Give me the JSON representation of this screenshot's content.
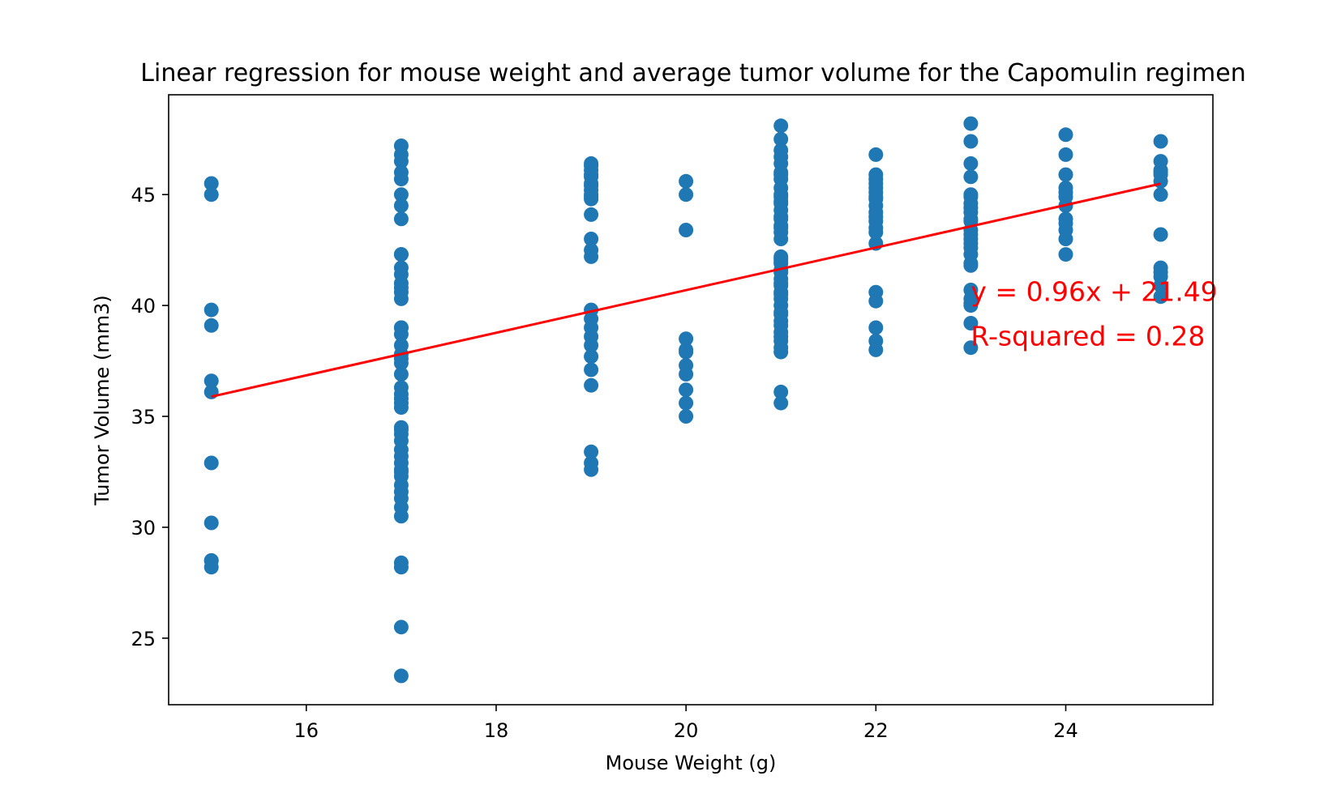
{
  "chart_data": {
    "type": "scatter",
    "title": "Linear regression for mouse weight and average tumor volume for the Capomulin regimen",
    "xlabel": "Mouse Weight (g)",
    "ylabel": "Tumor Volume (mm3)",
    "xlim": [
      14.55,
      25.55
    ],
    "ylim": [
      22.0,
      49.5
    ],
    "xticks": [
      16,
      18,
      20,
      22,
      24
    ],
    "yticks": [
      25,
      30,
      35,
      40,
      45
    ],
    "grid": false,
    "colors": {
      "points": "#1f77b4",
      "line": "#ff0000",
      "annotation": "#ff0000"
    },
    "series": [
      {
        "type": "scatter",
        "x": [
          15,
          15,
          15,
          15,
          15,
          15,
          15,
          15,
          15,
          15,
          15,
          17,
          17,
          17,
          17,
          17,
          17,
          17,
          17,
          17,
          17,
          17,
          17,
          17,
          17,
          17,
          17,
          17,
          17,
          17,
          17,
          17,
          17,
          17,
          17,
          17,
          17,
          17,
          17,
          17,
          17,
          17,
          17,
          17,
          17,
          17,
          17,
          17,
          17,
          17,
          17,
          17,
          17,
          17,
          17,
          17,
          17,
          17,
          17,
          19,
          19,
          19,
          19,
          19,
          19,
          19,
          19,
          19,
          19,
          19,
          19,
          19,
          19,
          19,
          19,
          19,
          19,
          19,
          19,
          19,
          19,
          19,
          19,
          19,
          19,
          20,
          20,
          20,
          20,
          20,
          20,
          20,
          20,
          20,
          20,
          20,
          21,
          21,
          21,
          21,
          21,
          21,
          21,
          21,
          21,
          21,
          21,
          21,
          21,
          21,
          21,
          21,
          21,
          21,
          21,
          21,
          21,
          21,
          21,
          21,
          21,
          21,
          21,
          21,
          21,
          21,
          21,
          21,
          21,
          21,
          21,
          21,
          21,
          21,
          21,
          21,
          21,
          21,
          21,
          21,
          22,
          22,
          22,
          22,
          22,
          22,
          22,
          22,
          22,
          22,
          22,
          22,
          22,
          22,
          22,
          22,
          22,
          22,
          22,
          22,
          23,
          23,
          23,
          23,
          23,
          23,
          23,
          23,
          23,
          23,
          23,
          23,
          23,
          23,
          23,
          23,
          23,
          23,
          23,
          23,
          23,
          23,
          23,
          23,
          23,
          24,
          24,
          24,
          24,
          24,
          24,
          24,
          24,
          24,
          24,
          24,
          24,
          25,
          25,
          25,
          25,
          25,
          25,
          25,
          25,
          25,
          25,
          25,
          25,
          25
        ],
        "y": [
          45.5,
          45.0,
          39.8,
          39.1,
          36.6,
          36.1,
          32.9,
          30.2,
          28.5,
          28.2,
          28.5,
          47.2,
          46.8,
          46.5,
          46.0,
          45.7,
          45.0,
          44.5,
          43.9,
          42.3,
          41.7,
          41.4,
          41.0,
          40.6,
          40.3,
          39.0,
          38.7,
          38.2,
          37.8,
          37.4,
          36.9,
          36.3,
          36.0,
          35.6,
          35.4,
          34.5,
          34.2,
          33.9,
          33.5,
          33.2,
          32.9,
          32.6,
          32.3,
          31.9,
          31.6,
          31.3,
          30.9,
          30.5,
          28.4,
          28.2,
          25.5,
          23.3,
          42.3,
          40.8,
          39.0,
          37.6,
          35.8,
          34.4,
          32.5,
          46.4,
          46.1,
          45.8,
          45.5,
          45.2,
          45.0,
          44.8,
          44.1,
          43.0,
          42.5,
          42.2,
          39.8,
          39.4,
          39.0,
          38.6,
          38.2,
          37.7,
          37.1,
          36.4,
          33.4,
          32.9,
          32.6,
          46.3,
          45.9,
          45.4,
          44.9,
          45.6,
          45.0,
          43.4,
          38.5,
          37.9,
          37.3,
          36.9,
          36.2,
          35.6,
          35.0,
          38.0,
          48.1,
          47.5,
          46.7,
          46.4,
          46.0,
          45.7,
          45.3,
          44.9,
          44.7,
          44.3,
          43.9,
          43.6,
          43.3,
          42.2,
          41.9,
          41.5,
          41.2,
          40.9,
          40.6,
          40.3,
          40.0,
          39.7,
          39.3,
          39.1,
          38.8,
          38.4,
          38.1,
          37.9,
          36.1,
          35.6,
          47.0,
          45.9,
          44.6,
          43.5,
          42.0,
          41.6,
          41.0,
          40.5,
          39.6,
          38.6,
          45.0,
          44.0,
          43.0,
          42.1,
          46.8,
          45.9,
          45.5,
          45.1,
          44.8,
          44.5,
          44.2,
          43.8,
          43.3,
          42.8,
          40.6,
          40.2,
          39.0,
          38.4,
          38.0,
          45.7,
          45.3,
          44.9,
          44.0,
          43.5,
          48.2,
          47.4,
          46.4,
          45.8,
          45.0,
          44.6,
          44.2,
          43.8,
          43.4,
          43.0,
          42.6,
          42.3,
          41.8,
          40.7,
          40.3,
          40.0,
          39.2,
          38.1,
          44.9,
          44.4,
          43.9,
          43.2,
          42.8,
          41.9,
          40.1,
          47.7,
          46.8,
          45.9,
          45.3,
          44.9,
          44.5,
          43.9,
          43.4,
          43.0,
          42.3,
          45.1,
          43.7,
          47.4,
          46.5,
          46.0,
          45.6,
          45.0,
          43.2,
          41.7,
          41.3,
          40.9,
          40.4,
          46.1,
          45.9,
          41.5
        ]
      },
      {
        "type": "line",
        "x": [
          15,
          25
        ],
        "y": [
          35.89,
          45.49
        ]
      }
    ],
    "annotations": [
      {
        "text": "y = 0.96x + 21.49",
        "x": 23.0,
        "y": 40.2
      },
      {
        "text": "R-squared = 0.28",
        "x": 23.0,
        "y": 38.2
      }
    ]
  }
}
